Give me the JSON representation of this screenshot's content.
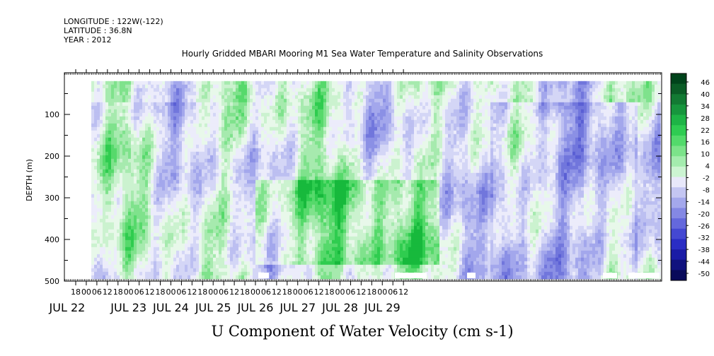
{
  "header": {
    "longitude": "LONGITUDE : 122W(-122)",
    "latitude": "LATITUDE : 36.8N",
    "year": "YEAR : 2012"
  },
  "chart_data": {
    "type": "heatmap",
    "title": "Hourly Gridded MBARI Mooring M1 Sea Water Temperature and Salinity Observations",
    "xlabel": "U Component of Water Velocity (cm s-1)",
    "ylabel": "DEPTH (m)",
    "ylim": [
      500,
      0
    ],
    "y_ticks": [
      100,
      200,
      300,
      400,
      500
    ],
    "x_range_hours": [
      "2012-07-21T14:00",
      "2012-07-29T16:00"
    ],
    "x_hour_ticks": [
      "18",
      "00",
      "06",
      "12",
      "18",
      "00",
      "06",
      "12",
      "18",
      "00",
      "06",
      "12",
      "18",
      "00",
      "06",
      "12",
      "18",
      "00",
      "06",
      "12",
      "18",
      "00",
      "06",
      "12",
      "18",
      "00",
      "06",
      "12",
      "18",
      "00",
      "06",
      "12"
    ],
    "x_day_labels": [
      "JUL 22",
      "JUL 23",
      "JUL 24",
      "JUL 25",
      "JUL 26",
      "JUL 27",
      "JUL 28",
      "JUL 29"
    ],
    "colorbar_labels": [
      "46",
      "40",
      "34",
      "28",
      "22",
      "16",
      "10",
      "4",
      "-2",
      "-8",
      "-14",
      "-20",
      "-26",
      "-32",
      "-38",
      "-44",
      "-50"
    ],
    "colorbar_colors": [
      "#00431b",
      "#0a5c26",
      "#127a33",
      "#17963d",
      "#1eb446",
      "#2fcc52",
      "#53da6b",
      "#7ce38a",
      "#a4ecae",
      "#ccf4d2",
      "#e8e8fa",
      "#c4c6f2",
      "#a4a8ec",
      "#8488e4",
      "#6468dc",
      "#4448d2",
      "#2a2dc4",
      "#1a1ca6",
      "#10127e",
      "#080a5a"
    ],
    "depth_range": [
      20,
      490
    ]
  }
}
